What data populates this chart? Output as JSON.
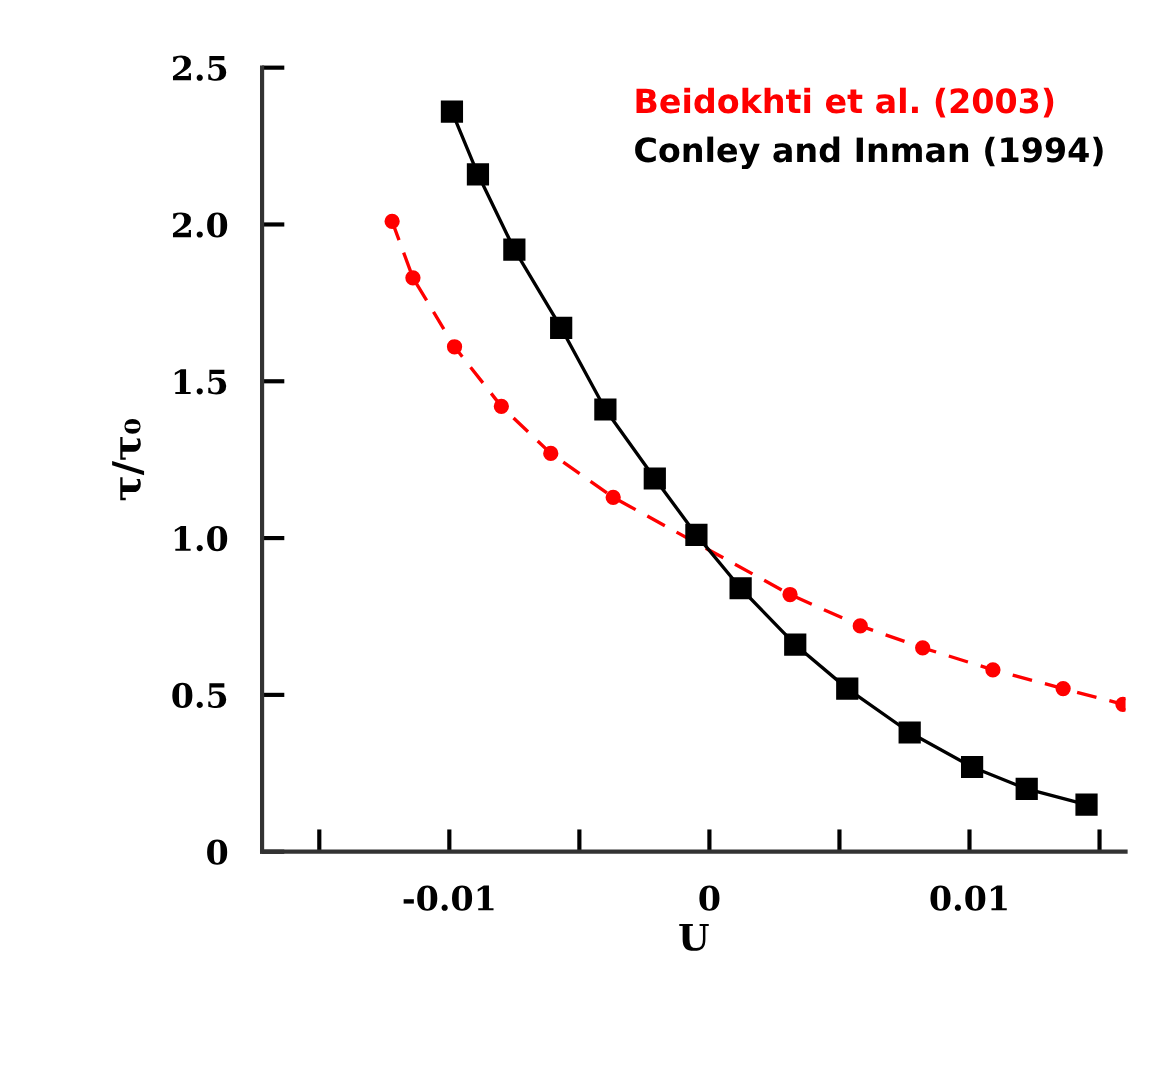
{
  "chart_data": {
    "type": "line",
    "xlabel": "U",
    "ylabel": "τ/τ₀",
    "xlim": [
      -0.0172,
      0.016
    ],
    "ylim": [
      0,
      2.5
    ],
    "xticks": [
      {
        "value": -0.015,
        "label": null
      },
      -0.01,
      {
        "value": -0.005,
        "label": null
      },
      0,
      {
        "value": 0.005,
        "label": null
      },
      0.01,
      {
        "value": 0.015,
        "label": null
      }
    ],
    "yticks": [
      0,
      0.5,
      {
        "value": 1,
        "label": "1.0"
      },
      1.5,
      {
        "value": 2,
        "label": "2.0"
      },
      2.5
    ],
    "grid": false,
    "legend": "top right",
    "series": [
      {
        "name": "Beidokhti et al. (2003)",
        "color": "#ff0000",
        "marker": "circle",
        "line_style": "dashed",
        "x": [
          -0.0122,
          -0.0114,
          -0.0098,
          -0.008,
          -0.0061,
          -0.0037,
          0.0031,
          0.0058,
          0.0082,
          0.0109,
          0.0136,
          0.0159
        ],
        "values": [
          2.01,
          1.83,
          1.61,
          1.42,
          1.27,
          1.13,
          0.82,
          0.72,
          0.65,
          0.58,
          0.52,
          0.47
        ]
      },
      {
        "name": "Conley and Inman (1994)",
        "color": "#000000",
        "marker": "square",
        "line_style": "solid",
        "x": [
          -0.0099,
          -0.0089,
          -0.0075,
          -0.0057,
          -0.004,
          -0.0021,
          -0.0005,
          0.0012,
          0.0033,
          0.0053,
          0.0077,
          0.0101,
          0.0122,
          0.0145
        ],
        "values": [
          2.36,
          2.16,
          1.92,
          1.67,
          1.41,
          1.19,
          1.01,
          0.84,
          0.66,
          0.52,
          0.38,
          0.27,
          0.2,
          0.15
        ]
      }
    ]
  }
}
